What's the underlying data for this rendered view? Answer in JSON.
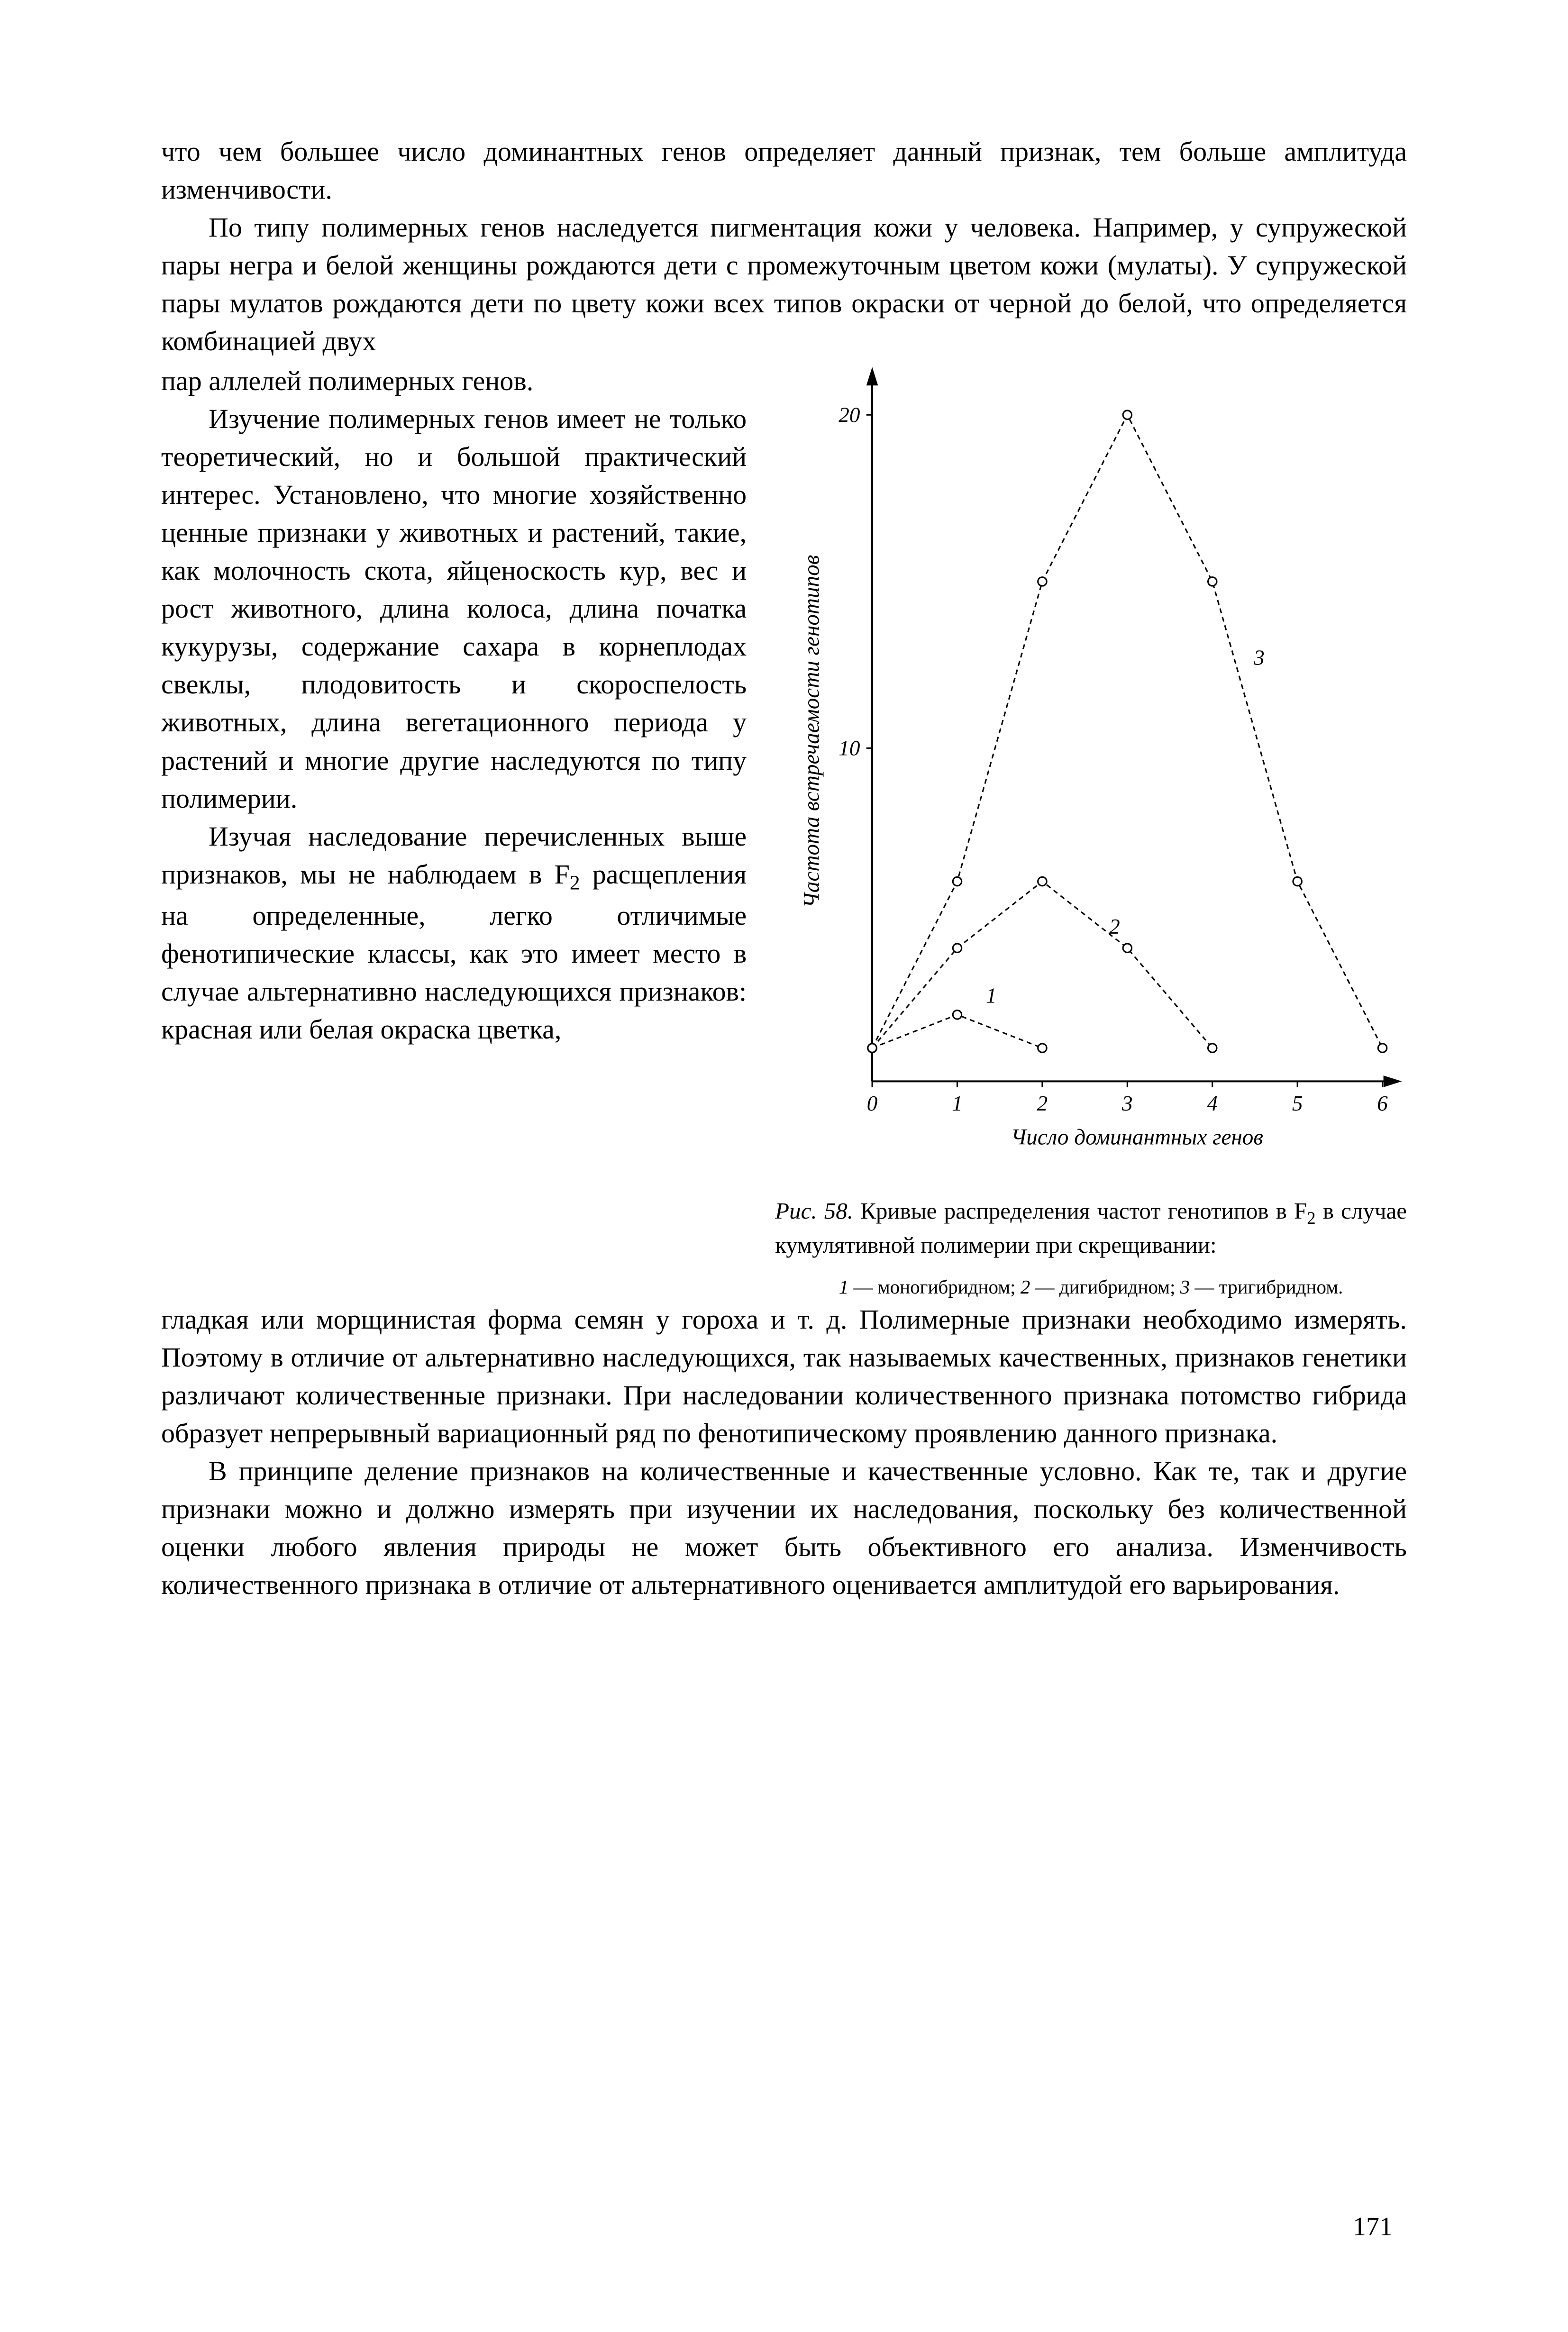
{
  "para1": "что чем большее число доминантных генов определяет данный признак, тем больше амплитуда изменчивости.",
  "para2": "По типу полимерных генов наследуется пигментация кожи у человека. Например, у супружеской пары негра и белой женщины рождаются дети с промежуточным цветом кожи (мулаты). У супружеской пары мулатов рождаются дети по цвету кожи всех типов окраски от черной до белой, что определяется комбинацией двух",
  "col_para1": "пар аллелей полимерных генов.",
  "col_para2": "Изучение полимерных генов имеет не только теоретический, но и большой практический интерес. Установлено, что многие хозяйственно ценные признаки у животных и растений, такие, как молочность скота, яйценоскость кур, вес и рост животного, длина колоса, длина початка кукурузы, содержание сахара в корнеплодах свеклы, плодовитость и скороспелость животных, длина вегетационного периода у растений и многие другие наследуются по типу полимерии.",
  "col_para3_a": "Изучая наследование перечисленных выше признаков, мы не наблюдаем в F",
  "col_para3_b": " расщепления на определенные, легко отличимые фенотипические классы, как это имеет место в случае альтернативно наследующихся признаков: красная или белая окраска цветка,",
  "para_bottom1": "гладкая или морщинистая форма семян у гороха и т. д. Полимерные признаки необходимо измерять. Поэтому в отличие от альтернативно наследующихся, так называемых качественных, признаков генетики различают количественные признаки. При наследовании количественного признака потомство гибрида образует непрерывный вариационный ряд по фенотипическому проявлению данного признака.",
  "para_bottom2": "В принципе деление признаков на количественные и качественные условно. Как те, так и другие признаки можно и должно измерять при изучении их наследования, поскольку без количественной оценки любого явления природы не может быть объективного его анализа. Изменчивость количественного признака в отличие от альтернативного оценивается амплитудой его варьирования.",
  "fig_caption_prefix": "Рис. 58.",
  "fig_caption_a": " Кривые распределения частот генотипов в F",
  "fig_caption_b": " в случае кумулятивной полимерии при скрещивании:",
  "fig_legend_1": "1",
  "fig_legend_1t": " — моногибридном; ",
  "fig_legend_2": "2",
  "fig_legend_2t": " — дигибридном; ",
  "fig_legend_3": "3",
  "fig_legend_3t": " — тригибридном.",
  "page_number": "171",
  "chart": {
    "type": "line",
    "xlabel": "Число доминантных генов",
    "ylabel": "Частота встречаемости генотипов",
    "xlim": [
      0,
      6
    ],
    "ylim": [
      0,
      21
    ],
    "xticks": [
      0,
      1,
      2,
      3,
      4,
      5,
      6
    ],
    "yticks": [
      10,
      20
    ],
    "ytick_label_10": "10",
    "ytick_label_20": "20",
    "xtick_0": "0",
    "xtick_1": "1",
    "xtick_2": "2",
    "xtick_3": "3",
    "xtick_4": "4",
    "xtick_5": "5",
    "xtick_6": "6",
    "series1": {
      "x": [
        0,
        1,
        2
      ],
      "y": [
        1,
        2,
        1
      ],
      "label": "1"
    },
    "series2": {
      "x": [
        0,
        1,
        2,
        3,
        4
      ],
      "y": [
        1,
        4,
        6,
        4,
        1
      ],
      "label": "2"
    },
    "series3": {
      "x": [
        0,
        1,
        2,
        3,
        4,
        5,
        6
      ],
      "y": [
        1,
        6,
        15,
        20,
        15,
        6,
        1
      ],
      "label": "3"
    },
    "line_color": "#000000",
    "marker_stroke": "#000000",
    "marker_fill": "#ffffff",
    "marker_radius": 6,
    "line_width": 3,
    "dash": "10,8",
    "axis_width": 4,
    "tick_len": 12,
    "background": "#ffffff",
    "label_fontsize": 44,
    "tick_fontsize": 44,
    "axis_label_fontsize": 46
  }
}
